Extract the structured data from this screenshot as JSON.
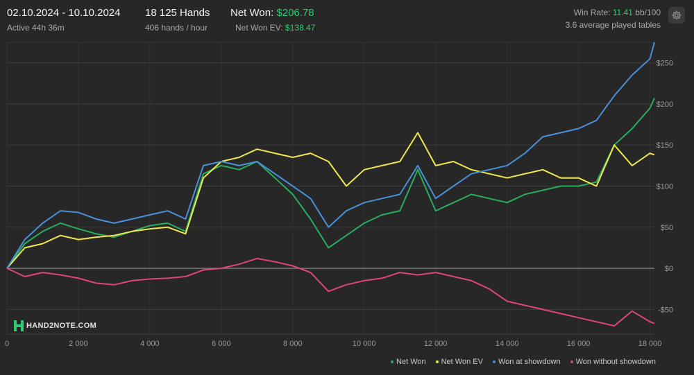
{
  "header": {
    "date_range": "02.10.2024 - 10.10.2024",
    "active": "Active 44h 36m",
    "hands": "18 125 Hands",
    "hands_per_hour": "406 hands / hour",
    "net_won_label": "Net Won:",
    "net_won_value": "$206.78",
    "net_won_ev_label": "Net Won  EV:",
    "net_won_ev_value": "$138.47",
    "win_rate_label": "Win Rate:",
    "win_rate_value": "11.41",
    "win_rate_unit": "bb/100",
    "tables": "3.6 average played tables"
  },
  "logo_text": "HAND2NOTE.COM",
  "icons": {
    "settings": "gear-icon",
    "logo": "hand2note-logo-icon"
  },
  "colors": {
    "net_won": "#27ae60",
    "net_won_ev": "#f1e94b",
    "won_at_showdown": "#4a90d9",
    "won_without_showdown": "#e0457b"
  },
  "chart_data": {
    "type": "line",
    "xlim": [
      0,
      18125
    ],
    "ylim": [
      -80,
      275
    ],
    "x_ticks": [
      0,
      2000,
      4000,
      6000,
      8000,
      10000,
      12000,
      14000,
      16000,
      18000
    ],
    "x_tick_labels": [
      "0",
      "2 000",
      "4 000",
      "6 000",
      "8 000",
      "10 000",
      "12 000",
      "14 000",
      "16 000",
      "18 000"
    ],
    "y_ticks": [
      -50,
      0,
      50,
      100,
      150,
      200,
      250
    ],
    "y_tick_labels": [
      "-$50",
      "$0",
      "$50",
      "$100",
      "$150",
      "$200",
      "$250"
    ],
    "grid": true,
    "legend_position": "bottom-right",
    "x": [
      0,
      500,
      1000,
      1500,
      2000,
      2500,
      3000,
      3500,
      4000,
      4500,
      5000,
      5500,
      6000,
      6500,
      7000,
      7500,
      8000,
      8500,
      9000,
      9500,
      10000,
      10500,
      11000,
      11500,
      12000,
      12500,
      13000,
      13500,
      14000,
      14500,
      15000,
      15500,
      16000,
      16500,
      17000,
      17500,
      18000,
      18125
    ],
    "series": [
      {
        "name": "Net Won",
        "key": "net_won",
        "values": [
          0,
          30,
          45,
          55,
          48,
          42,
          38,
          45,
          52,
          55,
          45,
          115,
          125,
          120,
          130,
          110,
          90,
          60,
          25,
          40,
          55,
          65,
          70,
          120,
          70,
          80,
          90,
          85,
          80,
          90,
          95,
          100,
          100,
          105,
          150,
          170,
          195,
          207
        ]
      },
      {
        "name": "Net Won  EV",
        "key": "net_won_ev",
        "values": [
          0,
          25,
          30,
          40,
          35,
          38,
          40,
          45,
          48,
          50,
          42,
          110,
          130,
          135,
          145,
          140,
          135,
          140,
          130,
          100,
          120,
          125,
          130,
          165,
          125,
          130,
          120,
          115,
          110,
          115,
          120,
          110,
          110,
          100,
          150,
          125,
          140,
          138
        ]
      },
      {
        "name": "Won at showdown",
        "key": "won_at_showdown",
        "values": [
          0,
          35,
          55,
          70,
          68,
          60,
          55,
          60,
          65,
          70,
          60,
          125,
          130,
          125,
          130,
          115,
          100,
          85,
          50,
          70,
          80,
          85,
          90,
          125,
          85,
          100,
          115,
          120,
          125,
          140,
          160,
          165,
          170,
          180,
          210,
          235,
          255,
          275
        ]
      },
      {
        "name": "Won without showdown",
        "key": "won_without_showdown",
        "values": [
          0,
          -10,
          -5,
          -8,
          -12,
          -18,
          -20,
          -15,
          -13,
          -12,
          -10,
          -2,
          0,
          5,
          12,
          8,
          3,
          -5,
          -28,
          -20,
          -15,
          -12,
          -5,
          -8,
          -5,
          -10,
          -15,
          -25,
          -40,
          -45,
          -50,
          -55,
          -60,
          -65,
          -70,
          -52,
          -65,
          -67
        ]
      }
    ]
  },
  "legend": [
    {
      "key": "net_won",
      "label": "Net Won"
    },
    {
      "key": "net_won_ev",
      "label": "Net Won  EV"
    },
    {
      "key": "won_at_showdown",
      "label": "Won at showdown"
    },
    {
      "key": "won_without_showdown",
      "label": "Won without showdown"
    }
  ]
}
